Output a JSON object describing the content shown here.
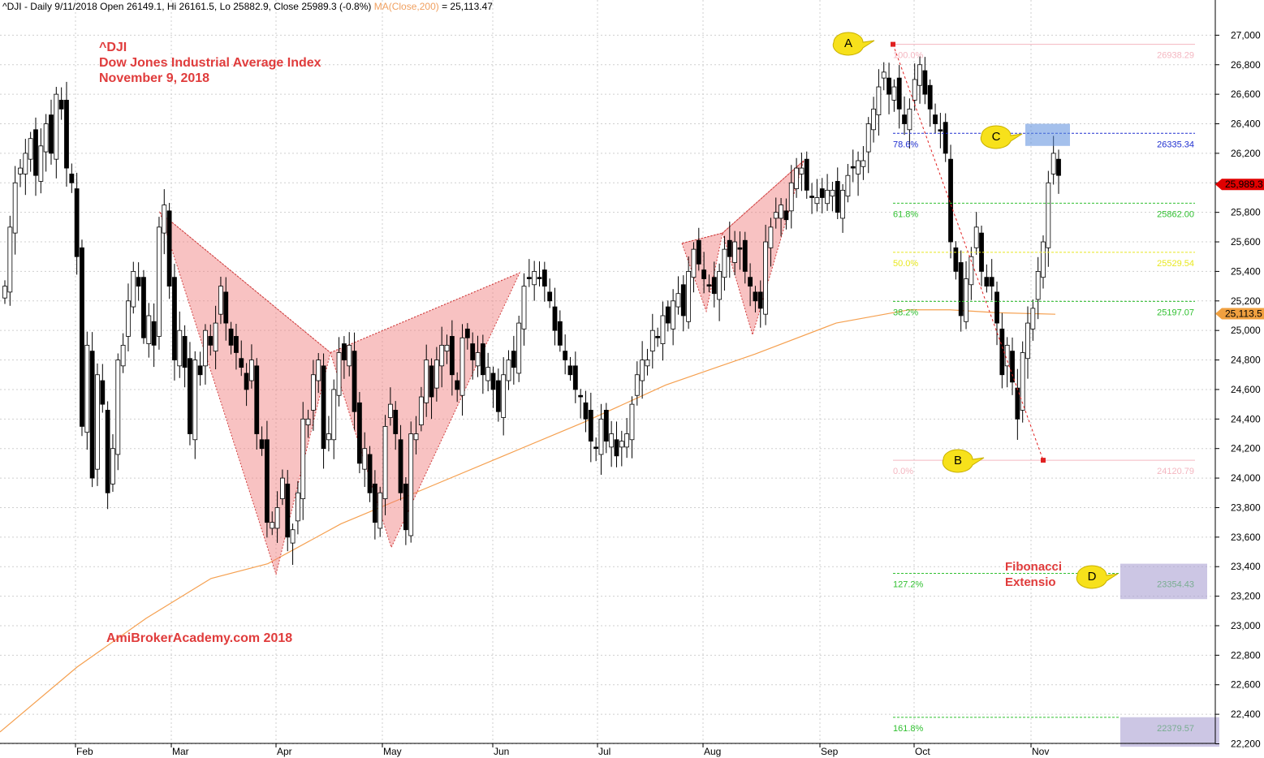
{
  "header": {
    "symbol_info": "^DJI - Daily 9/11/2018 Open 26149.1, Hi 26161.5, Lo 25882.9, Close 25989.3 (-0.8%)",
    "ma_label": "MA(Close,200)",
    "ma_value": " = 25,113.47"
  },
  "annotations": {
    "title_line1": "^DJI",
    "title_line2": "Dow Jones Industrial Average Index",
    "title_line3": "November 9, 2018",
    "watermark": "AmiBrokerAcademy.com  2018",
    "fib_note_line1": "Fibonacci",
    "fib_note_line2": "Extensio",
    "point_a": "A",
    "point_b": "B",
    "point_c": "C",
    "point_d": "D"
  },
  "chart_data": {
    "type": "candlestick",
    "y_axis": {
      "range": [
        22200,
        27100
      ],
      "ticks": [
        "22,200",
        "22,400",
        "22,600",
        "22,800",
        "23,000",
        "23,200",
        "23,400",
        "23,600",
        "23,800",
        "24,000",
        "24,200",
        "24,400",
        "24,600",
        "24,800",
        "25,000",
        "25,200",
        "25,400",
        "25,600",
        "25,800",
        "26,000",
        "26,200",
        "26,400",
        "26,600",
        "26,800",
        "27,000"
      ]
    },
    "x_axis": {
      "labels": [
        "Feb",
        "Mar",
        "Apr",
        "May",
        "Jun",
        "Jul",
        "Aug",
        "Sep",
        "Oct",
        "Nov"
      ]
    },
    "price_markers": [
      {
        "label": "25,989.3",
        "value": 25989.3,
        "color": "#e00000"
      },
      {
        "label": "25,113.5",
        "value": 25113.5,
        "color": "#f0a040"
      }
    ],
    "fibonacci": [
      {
        "pct": "100.0%",
        "value_label": "26938.29",
        "value": 26938.29,
        "color": "#f4b6c0"
      },
      {
        "pct": "78.6%",
        "value_label": "26335.34",
        "value": 26335.34,
        "color": "#2030d0"
      },
      {
        "pct": "61.8%",
        "value_label": "25862.00",
        "value": 25862.0,
        "color": "#30c030"
      },
      {
        "pct": "50.0%",
        "value_label": "25529.54",
        "value": 25529.54,
        "color": "#e8e820"
      },
      {
        "pct": "38.2%",
        "value_label": "25197.07",
        "value": 25197.07,
        "color": "#30c030"
      },
      {
        "pct": "0.0%",
        "value_label": "24120.79",
        "value": 24120.79,
        "color": "#f4b6c0"
      },
      {
        "pct": "127.2%",
        "value_label": "23354.43",
        "value": 23354.43,
        "color": "#30c030"
      },
      {
        "pct": "161.8%",
        "value_label": "22379.57",
        "value": 22379.57,
        "color": "#30c030"
      }
    ],
    "ma200_visible_points": [
      [
        0,
        22280
      ],
      [
        95,
        22720
      ],
      [
        180,
        23050
      ],
      [
        260,
        23320
      ],
      [
        330,
        23420
      ],
      [
        420,
        23690
      ],
      [
        520,
        23920
      ],
      [
        620,
        24150
      ],
      [
        720,
        24380
      ],
      [
        820,
        24630
      ],
      [
        930,
        24840
      ],
      [
        1030,
        25050
      ],
      [
        1120,
        25140
      ],
      [
        1170,
        25140
      ],
      [
        1230,
        25120
      ],
      [
        1300,
        25110
      ]
    ],
    "harmonic_patterns": [
      {
        "name": "bearish-butterfly-1",
        "points": [
          [
            197,
            25800
          ],
          [
            340,
            23350
          ],
          [
            407,
            24850
          ],
          [
            482,
            23530
          ],
          [
            640,
            25390
          ]
        ]
      },
      {
        "name": "bearish-butterfly-2",
        "points": [
          [
            840,
            25590
          ],
          [
            870,
            25130
          ],
          [
            890,
            25660
          ],
          [
            927,
            24970
          ],
          [
            990,
            26150
          ]
        ]
      }
    ],
    "abcd": {
      "A": [
        1100,
        26938.29
      ],
      "B": [
        1285,
        24120.79
      ],
      "C_zone": [
        1263,
        26400,
        1318,
        26250
      ],
      "D_zone": [
        1380,
        23420,
        1487,
        23180
      ],
      "D2_zone": [
        1380,
        22380,
        1502,
        22180
      ]
    }
  }
}
